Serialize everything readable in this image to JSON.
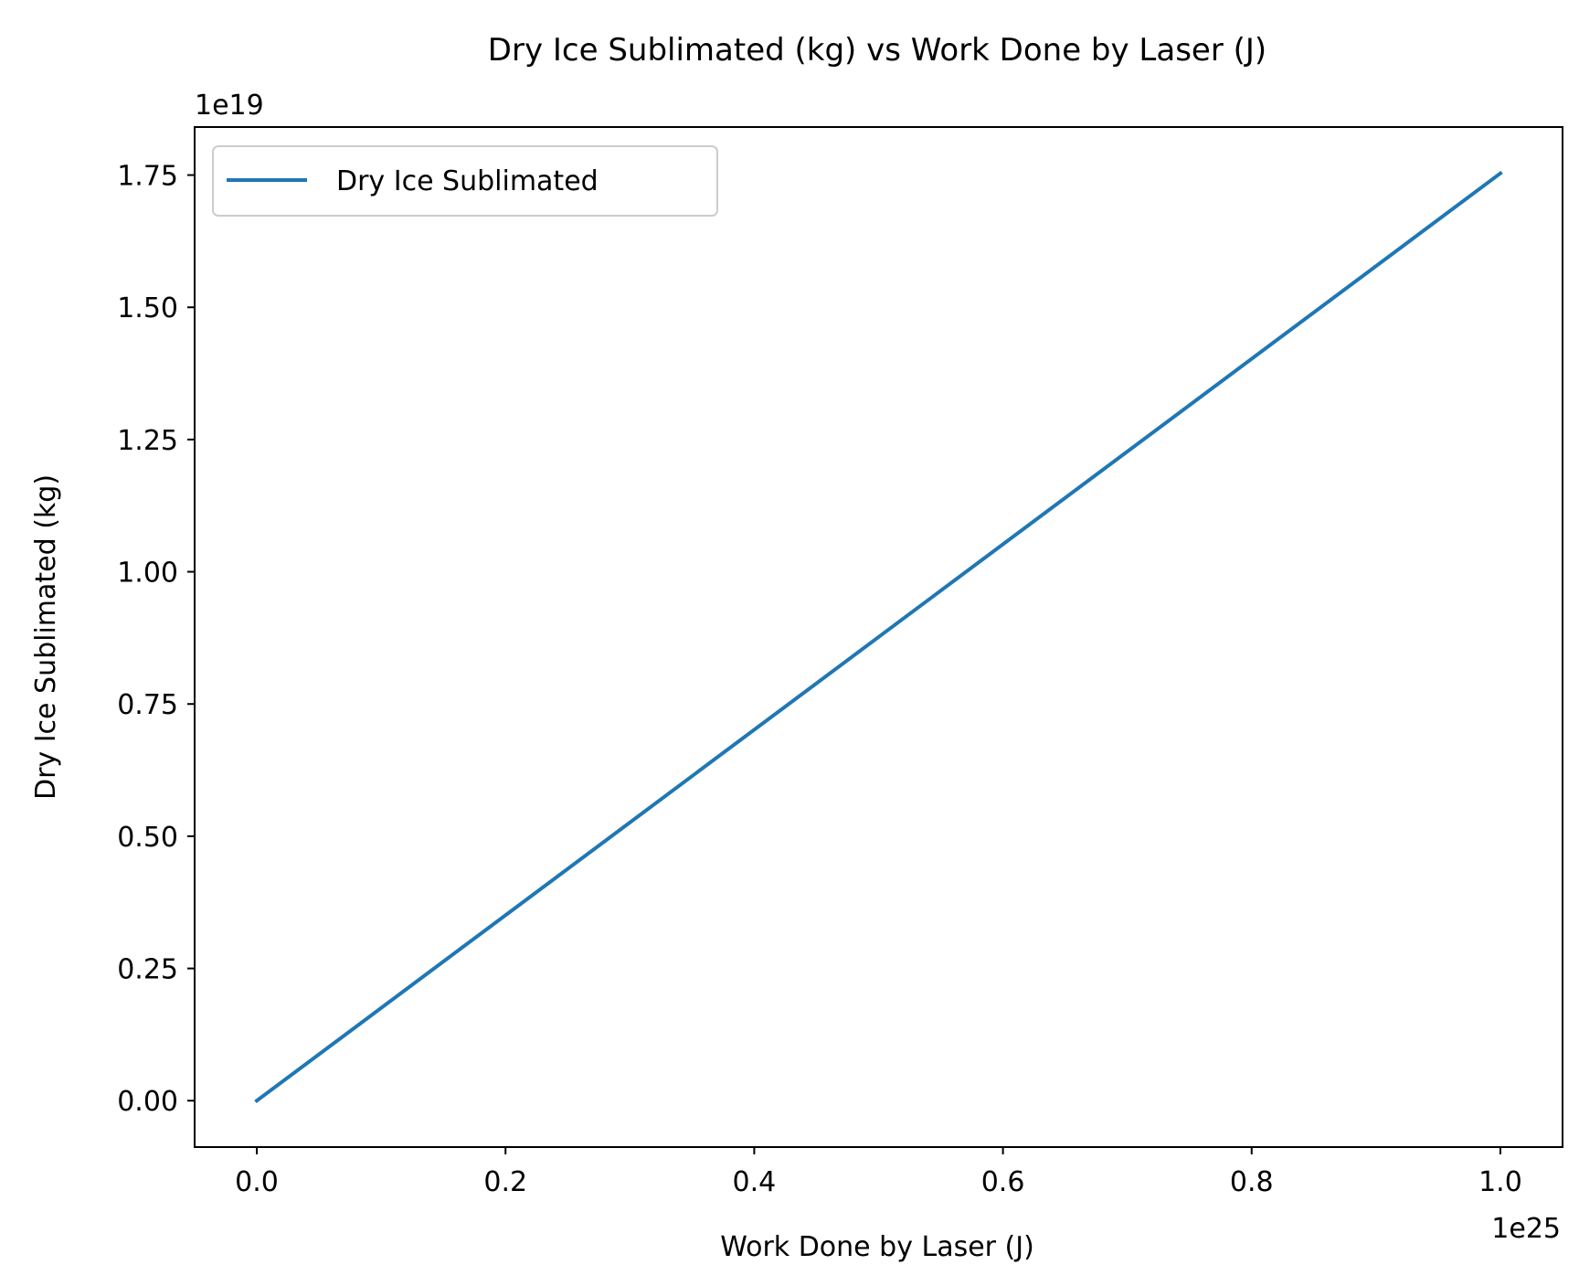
{
  "chart_data": {
    "type": "line",
    "title": "Dry Ice Sublimated (kg) vs Work Done by Laser (J)",
    "xlabel": "Work Done by Laser (J)",
    "ylabel": "Dry Ice Sublimated (kg)",
    "x_offset_label": "1e25",
    "y_offset_label": "1e19",
    "x_scale": 1e+25,
    "y_scale": 1e+19,
    "xlim": [
      -0.05,
      1.05
    ],
    "ylim": [
      -0.0877,
      1.8408
    ],
    "x_ticks": [
      0.0,
      0.2,
      0.4,
      0.6,
      0.8,
      1.0
    ],
    "x_tick_labels": [
      "0.0",
      "0.2",
      "0.4",
      "0.6",
      "0.8",
      "1.0"
    ],
    "y_ticks": [
      0.0,
      0.25,
      0.5,
      0.75,
      1.0,
      1.25,
      1.5,
      1.75
    ],
    "y_tick_labels": [
      "0.00",
      "0.25",
      "0.50",
      "0.75",
      "1.00",
      "1.25",
      "1.50",
      "1.75"
    ],
    "grid": false,
    "legend_position": "top-left",
    "series": [
      {
        "name": "Dry Ice Sublimated",
        "color": "#1f77b4",
        "x": [
          0.0,
          1.0
        ],
        "y": [
          0.0,
          1.7533
        ]
      }
    ]
  }
}
